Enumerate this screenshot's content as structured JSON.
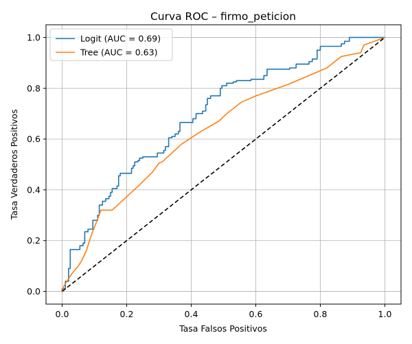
{
  "chart_data": {
    "type": "line",
    "title": "Curva ROC – firmo_peticion",
    "xlabel": "Tasa Falsos Positivos",
    "ylabel": "Tasa Verdaderos Positivos",
    "xlim": [
      -0.05,
      1.05
    ],
    "ylim": [
      -0.05,
      1.05
    ],
    "grid": true,
    "legend_position": "top-left",
    "x_ticks": [
      0.0,
      0.2,
      0.4,
      0.6,
      0.8,
      1.0
    ],
    "y_ticks": [
      0.0,
      0.2,
      0.4,
      0.6,
      0.8,
      1.0
    ],
    "x_tick_labels": [
      "0.0",
      "0.2",
      "0.4",
      "0.6",
      "0.8",
      "1.0"
    ],
    "y_tick_labels": [
      "0.0",
      "0.2",
      "0.4",
      "0.6",
      "0.8",
      "1.0"
    ],
    "series": [
      {
        "name": "Logit (AUC = 0.69)",
        "color": "#1f77b4",
        "style": "step",
        "points": [
          [
            0.0,
            0.0
          ],
          [
            0.0,
            0.01
          ],
          [
            0.01,
            0.01
          ],
          [
            0.01,
            0.04
          ],
          [
            0.02,
            0.04
          ],
          [
            0.02,
            0.09
          ],
          [
            0.025,
            0.09
          ],
          [
            0.025,
            0.165
          ],
          [
            0.055,
            0.165
          ],
          [
            0.055,
            0.18
          ],
          [
            0.065,
            0.18
          ],
          [
            0.065,
            0.19
          ],
          [
            0.07,
            0.19
          ],
          [
            0.07,
            0.235
          ],
          [
            0.08,
            0.235
          ],
          [
            0.08,
            0.245
          ],
          [
            0.095,
            0.245
          ],
          [
            0.095,
            0.28
          ],
          [
            0.11,
            0.28
          ],
          [
            0.11,
            0.3
          ],
          [
            0.115,
            0.3
          ],
          [
            0.115,
            0.34
          ],
          [
            0.125,
            0.34
          ],
          [
            0.125,
            0.355
          ],
          [
            0.135,
            0.355
          ],
          [
            0.135,
            0.365
          ],
          [
            0.145,
            0.365
          ],
          [
            0.145,
            0.375
          ],
          [
            0.15,
            0.375
          ],
          [
            0.15,
            0.39
          ],
          [
            0.155,
            0.39
          ],
          [
            0.155,
            0.405
          ],
          [
            0.17,
            0.405
          ],
          [
            0.17,
            0.415
          ],
          [
            0.175,
            0.415
          ],
          [
            0.175,
            0.455
          ],
          [
            0.18,
            0.455
          ],
          [
            0.18,
            0.465
          ],
          [
            0.215,
            0.465
          ],
          [
            0.215,
            0.485
          ],
          [
            0.22,
            0.485
          ],
          [
            0.22,
            0.495
          ],
          [
            0.225,
            0.495
          ],
          [
            0.225,
            0.51
          ],
          [
            0.235,
            0.51
          ],
          [
            0.235,
            0.515
          ],
          [
            0.24,
            0.515
          ],
          [
            0.24,
            0.525
          ],
          [
            0.25,
            0.525
          ],
          [
            0.25,
            0.53
          ],
          [
            0.295,
            0.53
          ],
          [
            0.295,
            0.545
          ],
          [
            0.315,
            0.545
          ],
          [
            0.315,
            0.555
          ],
          [
            0.32,
            0.555
          ],
          [
            0.32,
            0.57
          ],
          [
            0.33,
            0.57
          ],
          [
            0.33,
            0.605
          ],
          [
            0.34,
            0.605
          ],
          [
            0.34,
            0.61
          ],
          [
            0.35,
            0.61
          ],
          [
            0.35,
            0.62
          ],
          [
            0.36,
            0.62
          ],
          [
            0.36,
            0.63
          ],
          [
            0.365,
            0.63
          ],
          [
            0.365,
            0.665
          ],
          [
            0.405,
            0.665
          ],
          [
            0.405,
            0.68
          ],
          [
            0.415,
            0.68
          ],
          [
            0.415,
            0.7
          ],
          [
            0.435,
            0.7
          ],
          [
            0.435,
            0.71
          ],
          [
            0.445,
            0.71
          ],
          [
            0.445,
            0.735
          ],
          [
            0.45,
            0.735
          ],
          [
            0.45,
            0.76
          ],
          [
            0.46,
            0.76
          ],
          [
            0.46,
            0.77
          ],
          [
            0.49,
            0.77
          ],
          [
            0.49,
            0.8
          ],
          [
            0.495,
            0.8
          ],
          [
            0.495,
            0.81
          ],
          [
            0.51,
            0.81
          ],
          [
            0.51,
            0.82
          ],
          [
            0.53,
            0.82
          ],
          [
            0.53,
            0.825
          ],
          [
            0.54,
            0.825
          ],
          [
            0.54,
            0.83
          ],
          [
            0.585,
            0.83
          ],
          [
            0.585,
            0.835
          ],
          [
            0.625,
            0.835
          ],
          [
            0.625,
            0.85
          ],
          [
            0.635,
            0.85
          ],
          [
            0.635,
            0.875
          ],
          [
            0.705,
            0.875
          ],
          [
            0.705,
            0.88
          ],
          [
            0.725,
            0.88
          ],
          [
            0.725,
            0.895
          ],
          [
            0.765,
            0.895
          ],
          [
            0.765,
            0.905
          ],
          [
            0.775,
            0.905
          ],
          [
            0.775,
            0.915
          ],
          [
            0.79,
            0.915
          ],
          [
            0.79,
            0.95
          ],
          [
            0.8,
            0.95
          ],
          [
            0.8,
            0.965
          ],
          [
            0.865,
            0.965
          ],
          [
            0.865,
            0.975
          ],
          [
            0.875,
            0.975
          ],
          [
            0.875,
            0.985
          ],
          [
            0.89,
            0.985
          ],
          [
            0.89,
            1.0
          ],
          [
            1.0,
            1.0
          ]
        ]
      },
      {
        "name": "Tree (AUC = 0.63)",
        "color": "#ff7f0e",
        "style": "line",
        "points": [
          [
            0.0,
            0.0
          ],
          [
            0.005,
            0.02
          ],
          [
            0.015,
            0.04
          ],
          [
            0.03,
            0.07
          ],
          [
            0.05,
            0.1
          ],
          [
            0.06,
            0.12
          ],
          [
            0.075,
            0.16
          ],
          [
            0.09,
            0.22
          ],
          [
            0.11,
            0.285
          ],
          [
            0.12,
            0.32
          ],
          [
            0.155,
            0.32
          ],
          [
            0.24,
            0.42
          ],
          [
            0.28,
            0.47
          ],
          [
            0.3,
            0.505
          ],
          [
            0.31,
            0.51
          ],
          [
            0.37,
            0.58
          ],
          [
            0.43,
            0.63
          ],
          [
            0.485,
            0.67
          ],
          [
            0.51,
            0.7
          ],
          [
            0.555,
            0.745
          ],
          [
            0.6,
            0.77
          ],
          [
            0.7,
            0.815
          ],
          [
            0.82,
            0.88
          ],
          [
            0.865,
            0.925
          ],
          [
            0.925,
            0.94
          ],
          [
            0.935,
            0.97
          ],
          [
            1.0,
            1.0
          ]
        ]
      },
      {
        "color": "#000000",
        "style": "dashed",
        "points": [
          [
            0.0,
            0.0
          ],
          [
            1.0,
            1.0
          ]
        ]
      }
    ]
  }
}
